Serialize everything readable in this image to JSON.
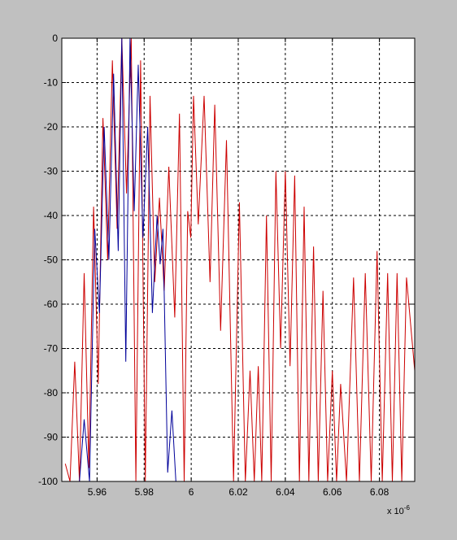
{
  "chart_data": {
    "type": "line",
    "title": "",
    "xlabel": "",
    "ylabel": "",
    "x_exponent_label": "x 10",
    "x_exponent_power": "-6",
    "xlim": [
      5.945,
      6.095
    ],
    "ylim": [
      -100,
      0
    ],
    "grid": true,
    "x_ticks": [
      {
        "value": 5.96,
        "label": "5.96"
      },
      {
        "value": 5.98,
        "label": "5.98"
      },
      {
        "value": 6.0,
        "label": "6"
      },
      {
        "value": 6.02,
        "label": "6.02"
      },
      {
        "value": 6.04,
        "label": "6.04"
      },
      {
        "value": 6.06,
        "label": "6.06"
      },
      {
        "value": 6.08,
        "label": "6.08"
      }
    ],
    "y_ticks": [
      {
        "value": 0,
        "label": "0"
      },
      {
        "value": -10,
        "label": "-10"
      },
      {
        "value": -20,
        "label": "-20"
      },
      {
        "value": -30,
        "label": "-30"
      },
      {
        "value": -40,
        "label": "-40"
      },
      {
        "value": -50,
        "label": "-50"
      },
      {
        "value": -60,
        "label": "-60"
      },
      {
        "value": -70,
        "label": "-70"
      },
      {
        "value": -80,
        "label": "-80"
      },
      {
        "value": -90,
        "label": "-90"
      },
      {
        "value": -100,
        "label": "-100"
      }
    ],
    "series": [
      {
        "color": "#cc0000",
        "peaks": [
          {
            "x": 5.9465,
            "y": -96
          },
          {
            "x": 5.9505,
            "y": -73
          },
          {
            "x": 5.9545,
            "y": -53
          },
          {
            "x": 5.9585,
            "y": -38
          },
          {
            "x": 5.9625,
            "y": -18
          },
          {
            "x": 5.9665,
            "y": -5
          },
          {
            "x": 5.9705,
            "y": 0
          },
          {
            "x": 5.9745,
            "y": 0
          },
          {
            "x": 5.9785,
            "y": -5
          },
          {
            "x": 5.9825,
            "y": -13
          },
          {
            "x": 5.9865,
            "y": -36
          },
          {
            "x": 5.9905,
            "y": -29
          },
          {
            "x": 5.995,
            "y": -17
          },
          {
            "x": 5.9985,
            "y": -39
          },
          {
            "x": 6.001,
            "y": -13
          },
          {
            "x": 6.0055,
            "y": -13
          },
          {
            "x": 6.01,
            "y": -15
          },
          {
            "x": 6.015,
            "y": -23
          },
          {
            "x": 6.0205,
            "y": -37
          },
          {
            "x": 6.025,
            "y": -75
          },
          {
            "x": 6.0285,
            "y": -74
          },
          {
            "x": 6.032,
            "y": -40
          },
          {
            "x": 6.036,
            "y": -30
          },
          {
            "x": 6.04,
            "y": -30
          },
          {
            "x": 6.044,
            "y": -31
          },
          {
            "x": 6.048,
            "y": -38
          },
          {
            "x": 6.052,
            "y": -47
          },
          {
            "x": 6.056,
            "y": -57
          },
          {
            "x": 6.06,
            "y": -75
          },
          {
            "x": 6.0635,
            "y": -78
          },
          {
            "x": 6.069,
            "y": -54
          },
          {
            "x": 6.074,
            "y": -53
          },
          {
            "x": 6.079,
            "y": -48
          },
          {
            "x": 6.0835,
            "y": -53
          },
          {
            "x": 6.0875,
            "y": -53
          },
          {
            "x": 6.0915,
            "y": -54
          }
        ],
        "nulls": [
          {
            "x": 5.9485,
            "y": -100
          },
          {
            "x": 5.9525,
            "y": -100
          },
          {
            "x": 5.9565,
            "y": -97
          },
          {
            "x": 5.9605,
            "y": -78
          },
          {
            "x": 5.9645,
            "y": -50
          },
          {
            "x": 5.9685,
            "y": -43
          },
          {
            "x": 5.9725,
            "y": -35
          },
          {
            "x": 5.9765,
            "y": -100
          },
          {
            "x": 5.9805,
            "y": -100
          },
          {
            "x": 5.9845,
            "y": -55
          },
          {
            "x": 5.9885,
            "y": -57
          },
          {
            "x": 5.993,
            "y": -63
          },
          {
            "x": 5.997,
            "y": -100
          },
          {
            "x": 5.9998,
            "y": -45
          },
          {
            "x": 6.003,
            "y": -42
          },
          {
            "x": 6.008,
            "y": -55
          },
          {
            "x": 6.0125,
            "y": -66
          },
          {
            "x": 6.018,
            "y": -100
          },
          {
            "x": 6.023,
            "y": -100
          },
          {
            "x": 6.0268,
            "y": -100
          },
          {
            "x": 6.03,
            "y": -100
          },
          {
            "x": 6.034,
            "y": -100
          },
          {
            "x": 6.038,
            "y": -70
          },
          {
            "x": 6.042,
            "y": -74
          },
          {
            "x": 6.046,
            "y": -100
          },
          {
            "x": 6.05,
            "y": -100
          },
          {
            "x": 6.054,
            "y": -100
          },
          {
            "x": 6.058,
            "y": -100
          },
          {
            "x": 6.0618,
            "y": -100
          },
          {
            "x": 6.066,
            "y": -100
          },
          {
            "x": 6.0715,
            "y": -100
          },
          {
            "x": 6.0765,
            "y": -100
          },
          {
            "x": 6.0812,
            "y": -100
          },
          {
            "x": 6.0855,
            "y": -100
          },
          {
            "x": 6.0895,
            "y": -100
          },
          {
            "x": 6.095,
            "y": -75
          }
        ]
      },
      {
        "color": "#000099",
        "peaks": [
          {
            "x": 5.9505,
            "y": -100
          },
          {
            "x": 5.9545,
            "y": -86
          },
          {
            "x": 5.959,
            "y": -43
          },
          {
            "x": 5.963,
            "y": -20
          },
          {
            "x": 5.967,
            "y": -8
          },
          {
            "x": 5.9705,
            "y": 0
          },
          {
            "x": 5.974,
            "y": 0
          },
          {
            "x": 5.9775,
            "y": -6
          },
          {
            "x": 5.9815,
            "y": -20
          },
          {
            "x": 5.9855,
            "y": -40
          },
          {
            "x": 5.988,
            "y": -43
          },
          {
            "x": 5.9918,
            "y": -84
          }
        ],
        "nulls": [
          {
            "x": 5.9525,
            "y": -100
          },
          {
            "x": 5.9568,
            "y": -100
          },
          {
            "x": 5.961,
            "y": -62
          },
          {
            "x": 5.965,
            "y": -50
          },
          {
            "x": 5.969,
            "y": -48
          },
          {
            "x": 5.9722,
            "y": -73
          },
          {
            "x": 5.9758,
            "y": -39
          },
          {
            "x": 5.9795,
            "y": -45
          },
          {
            "x": 5.9835,
            "y": -62
          },
          {
            "x": 5.9868,
            "y": -51
          },
          {
            "x": 5.99,
            "y": -98
          },
          {
            "x": 5.9935,
            "y": -100
          }
        ]
      }
    ]
  }
}
